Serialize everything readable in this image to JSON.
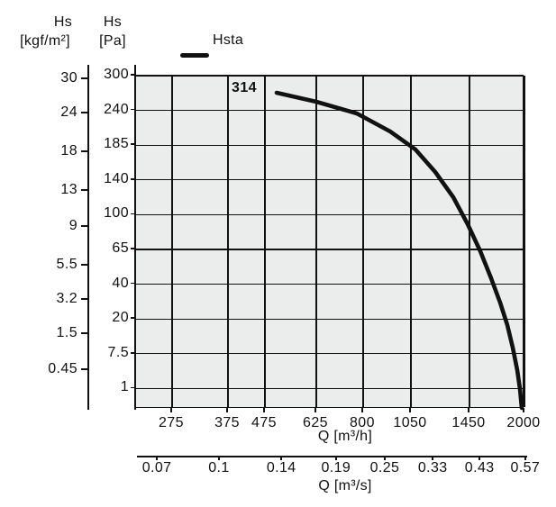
{
  "header": {
    "y_axis_left_title": {
      "line1": "Hs",
      "line2": "[kgf/m²]"
    },
    "y_axis_right_title": {
      "line1": "Hs",
      "line2": "[Pa]"
    },
    "legend": {
      "label": "Hsta",
      "line_color": "#111111"
    }
  },
  "chart_data": {
    "type": "line",
    "title": "",
    "curve_label": "314",
    "legend": [
      "Hsta"
    ],
    "x_axis_h": {
      "label": "Q [m³/h]",
      "ticks": [
        "275",
        "375",
        "475",
        "625",
        "800",
        "1050",
        "1450",
        "2000"
      ],
      "fractions": [
        0.0928,
        0.2367,
        0.3318,
        0.464,
        0.5846,
        0.7077,
        0.8585,
        1.0
      ],
      "scale": "log"
    },
    "x_axis_s": {
      "label": "Q [m³/s]",
      "ticks": [
        "0.07",
        "0.1",
        "0.14",
        "0.19",
        "0.25",
        "0.33",
        "0.43",
        "0.57"
      ],
      "fractions": [
        0.051,
        0.21,
        0.37,
        0.51,
        0.635,
        0.758,
        0.878,
        0.995
      ]
    },
    "y_axis_pa": {
      "unit": "Pa",
      "ticks": [
        "300",
        "240",
        "185",
        "140",
        "100",
        "65",
        "40",
        "20",
        "7.5",
        "1"
      ],
      "fractions": [
        0,
        0.1043,
        0.2086,
        0.313,
        0.4173,
        0.5216,
        0.6259,
        0.7303,
        0.8346,
        0.9389
      ]
    },
    "y_axis_kgf": {
      "unit": "kgf/m²",
      "ticks": [
        "30",
        "24",
        "18",
        "13",
        "9",
        "5.5",
        "3.2",
        "1.5",
        "0.45"
      ],
      "fractions": [
        0.0108,
        0.1135,
        0.2297,
        0.3459,
        0.4541,
        0.5703,
        0.673,
        0.7757,
        0.8838
      ]
    },
    "series": [
      {
        "name": "Hsta (fan 314)",
        "points_q_m3h_hs_pa": [
          [
            500,
            270
          ],
          [
            620,
            255
          ],
          [
            780,
            235
          ],
          [
            940,
            207
          ],
          [
            1090,
            179
          ],
          [
            1220,
            150
          ],
          [
            1350,
            120
          ],
          [
            1460,
            90
          ],
          [
            1570,
            64
          ],
          [
            1670,
            44
          ],
          [
            1760,
            29
          ],
          [
            1830,
            18
          ],
          [
            1890,
            10
          ],
          [
            1935,
            4.5
          ],
          [
            1965,
            1
          ],
          [
            1985,
            0
          ]
        ],
        "points_norm": [
          [
            0.3619,
            0.0514
          ],
          [
            0.464,
            0.0784
          ],
          [
            0.5684,
            0.1135
          ],
          [
            0.6543,
            0.1676
          ],
          [
            0.7193,
            0.2216
          ],
          [
            0.7703,
            0.2892
          ],
          [
            0.8167,
            0.3649
          ],
          [
            0.8538,
            0.4459
          ],
          [
            0.8863,
            0.527
          ],
          [
            0.9142,
            0.6081
          ],
          [
            0.9374,
            0.6811
          ],
          [
            0.9559,
            0.7486
          ],
          [
            0.9699,
            0.8162
          ],
          [
            0.9815,
            0.8838
          ],
          [
            0.9884,
            0.9405
          ],
          [
            0.993,
            0.9973
          ]
        ]
      }
    ],
    "colors": {
      "plot_bg": "#ebedec",
      "grid": "#111111",
      "curve": "#111111"
    },
    "grid": true,
    "legend_position": "top"
  }
}
